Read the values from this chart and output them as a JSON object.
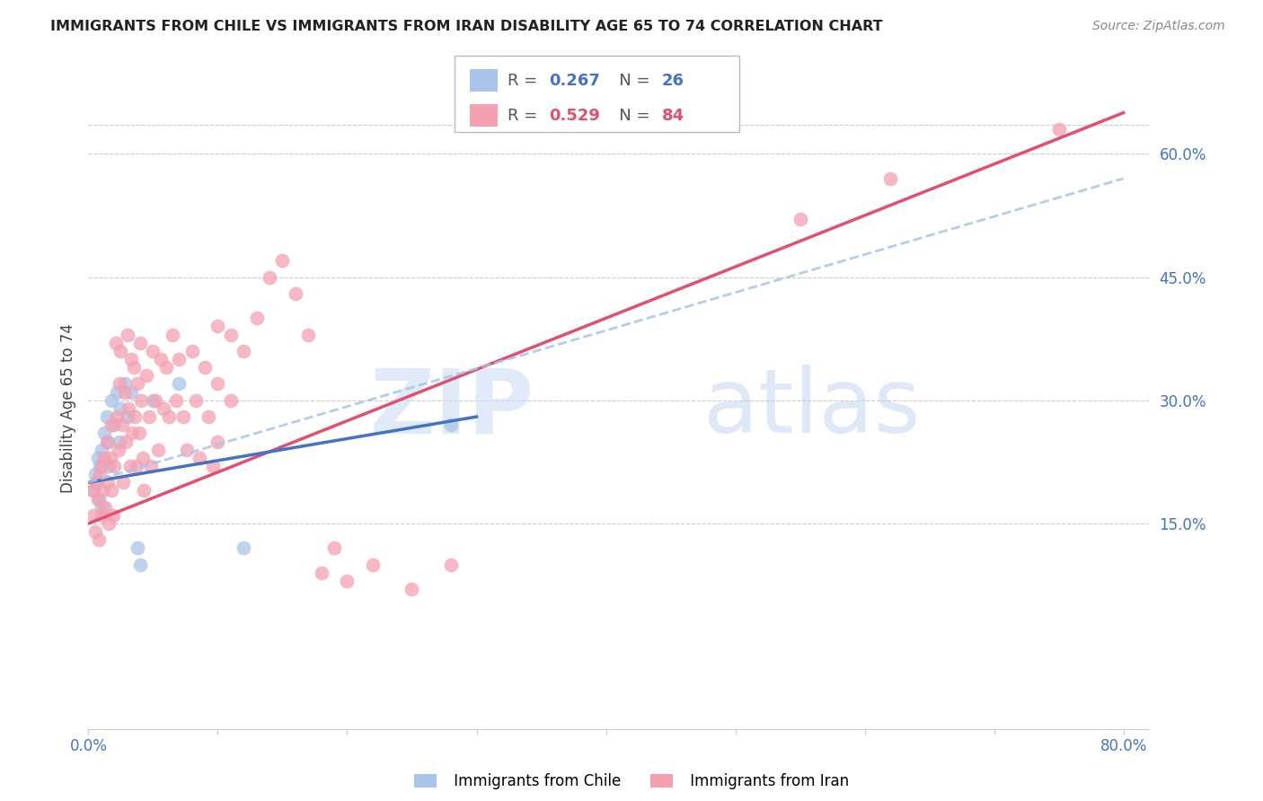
{
  "title": "IMMIGRANTS FROM CHILE VS IMMIGRANTS FROM IRAN DISABILITY AGE 65 TO 74 CORRELATION CHART",
  "source": "Source: ZipAtlas.com",
  "ylabel": "Disability Age 65 to 74",
  "xlim": [
    0.0,
    0.82
  ],
  "ylim": [
    -0.1,
    0.68
  ],
  "chile_color": "#a8c4e8",
  "iran_color": "#f4a0b0",
  "chile_line_color": "#4472c4",
  "iran_line_color": "#e05070",
  "dash_line_color": "#a8c4e8",
  "R_chile": 0.267,
  "N_chile": 26,
  "R_iran": 0.529,
  "N_iran": 84,
  "watermark_zip": "ZIP",
  "watermark_atlas": "atlas",
  "background_color": "#ffffff",
  "grid_color": "#cccccc",
  "yticks": [
    0.0,
    0.15,
    0.3,
    0.45,
    0.6
  ],
  "ytick_labels": [
    "",
    "15.0%",
    "30.0%",
    "45.0%",
    "60.0%"
  ],
  "xtick_labels": [
    "0.0%",
    "",
    "",
    "",
    "",
    "",
    "",
    "",
    "80.0%"
  ],
  "chile_x": [
    0.004,
    0.005,
    0.006,
    0.007,
    0.008,
    0.009,
    0.01,
    0.01,
    0.012,
    0.014,
    0.015,
    0.016,
    0.018,
    0.02,
    0.022,
    0.024,
    0.025,
    0.028,
    0.03,
    0.033,
    0.038,
    0.04,
    0.05,
    0.07,
    0.12,
    0.28
  ],
  "chile_y": [
    0.19,
    0.21,
    0.2,
    0.23,
    0.18,
    0.22,
    0.24,
    0.17,
    0.26,
    0.28,
    0.25,
    0.22,
    0.3,
    0.27,
    0.31,
    0.25,
    0.29,
    0.32,
    0.28,
    0.31,
    0.12,
    0.1,
    0.3,
    0.32,
    0.12,
    0.27
  ],
  "iran_x": [
    0.003,
    0.004,
    0.005,
    0.006,
    0.007,
    0.008,
    0.009,
    0.01,
    0.01,
    0.011,
    0.012,
    0.013,
    0.014,
    0.015,
    0.016,
    0.017,
    0.018,
    0.018,
    0.019,
    0.02,
    0.021,
    0.022,
    0.023,
    0.024,
    0.025,
    0.026,
    0.027,
    0.028,
    0.029,
    0.03,
    0.031,
    0.032,
    0.033,
    0.034,
    0.035,
    0.036,
    0.037,
    0.038,
    0.039,
    0.04,
    0.041,
    0.042,
    0.043,
    0.045,
    0.047,
    0.048,
    0.05,
    0.052,
    0.054,
    0.056,
    0.058,
    0.06,
    0.062,
    0.065,
    0.068,
    0.07,
    0.073,
    0.076,
    0.08,
    0.083,
    0.086,
    0.09,
    0.093,
    0.096,
    0.1,
    0.1,
    0.1,
    0.11,
    0.11,
    0.12,
    0.13,
    0.14,
    0.15,
    0.16,
    0.17,
    0.18,
    0.19,
    0.2,
    0.22,
    0.25,
    0.28,
    0.55,
    0.62,
    0.75
  ],
  "iran_y": [
    0.19,
    0.16,
    0.14,
    0.2,
    0.18,
    0.13,
    0.21,
    0.22,
    0.16,
    0.19,
    0.23,
    0.17,
    0.25,
    0.2,
    0.15,
    0.23,
    0.27,
    0.19,
    0.16,
    0.22,
    0.37,
    0.28,
    0.24,
    0.32,
    0.36,
    0.27,
    0.2,
    0.31,
    0.25,
    0.38,
    0.29,
    0.22,
    0.35,
    0.26,
    0.34,
    0.28,
    0.22,
    0.32,
    0.26,
    0.37,
    0.3,
    0.23,
    0.19,
    0.33,
    0.28,
    0.22,
    0.36,
    0.3,
    0.24,
    0.35,
    0.29,
    0.34,
    0.28,
    0.38,
    0.3,
    0.35,
    0.28,
    0.24,
    0.36,
    0.3,
    0.23,
    0.34,
    0.28,
    0.22,
    0.39,
    0.32,
    0.25,
    0.38,
    0.3,
    0.36,
    0.4,
    0.45,
    0.47,
    0.43,
    0.38,
    0.09,
    0.12,
    0.08,
    0.1,
    0.07,
    0.1,
    0.52,
    0.57,
    0.63
  ],
  "iran_line_start_x": 0.0,
  "iran_line_start_y": 0.15,
  "iran_line_end_x": 0.8,
  "iran_line_end_y": 0.65,
  "chile_line_start_x": 0.0,
  "chile_line_start_y": 0.2,
  "chile_line_end_x": 0.3,
  "chile_line_end_y": 0.28,
  "dash_line_start_x": 0.0,
  "dash_line_start_y": 0.2,
  "dash_line_end_x": 0.8,
  "dash_line_end_y": 0.57
}
